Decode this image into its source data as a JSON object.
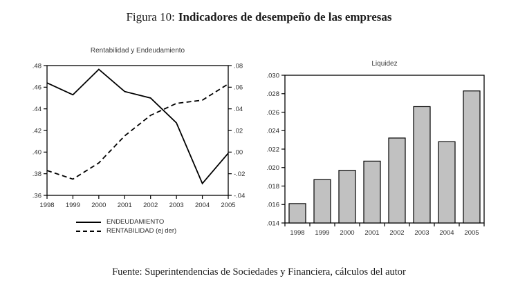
{
  "page": {
    "title_prefix": "Figura 10:",
    "title_main": "Indicadores de desempeño de las empresas",
    "source": "Fuente: Superintendencias de Sociedades y Financiera, cálculos del autor"
  },
  "colors": {
    "line": "#000000",
    "bar_fill": "#c1c1c1",
    "bar_stroke": "#000000",
    "text": "#2e2e2e"
  },
  "chart_data": [
    {
      "type": "line",
      "title": "Rentabilidad y Endeudamiento",
      "categories": [
        "1998",
        "1999",
        "2000",
        "2001",
        "2002",
        "2003",
        "2004",
        "2005"
      ],
      "left_axis": {
        "lim": [
          0.36,
          0.48
        ],
        "tick_labels_top_to_bottom": [
          ".48",
          ".46",
          ".44",
          ".42",
          ".40",
          ".38",
          ".36"
        ]
      },
      "right_axis": {
        "lim": [
          -0.04,
          0.08
        ],
        "tick_labels_top_to_bottom": [
          ".08",
          ".06",
          ".04",
          ".02",
          ".00",
          "-.02",
          "-.04"
        ]
      },
      "series": [
        {
          "name": "ENDEUDAMIENTO",
          "axis": "left",
          "line_style": "solid",
          "values": [
            0.464,
            0.453,
            0.4765,
            0.456,
            0.45,
            0.427,
            0.371,
            0.399
          ]
        },
        {
          "name": "RENTABILIDAD (ej der)",
          "axis": "right",
          "line_style": "dashed",
          "values": [
            -0.017,
            -0.025,
            -0.01,
            0.015,
            0.034,
            0.045,
            0.048,
            0.063
          ]
        }
      ],
      "legend_position": "below",
      "grid": false
    },
    {
      "type": "bar",
      "title": "Liquidez",
      "categories": [
        "1998",
        "1999",
        "2000",
        "2001",
        "2002",
        "2003",
        "2004",
        "2005"
      ],
      "values": [
        0.0161,
        0.0187,
        0.0197,
        0.0207,
        0.0232,
        0.0266,
        0.0228,
        0.0283
      ],
      "ylim": [
        0.014,
        0.03
      ],
      "ytick_labels_top_to_bottom": [
        ".030",
        ".028",
        ".026",
        ".024",
        ".022",
        ".020",
        ".018",
        ".016",
        ".014"
      ],
      "legend_position": "none",
      "grid": false
    }
  ]
}
